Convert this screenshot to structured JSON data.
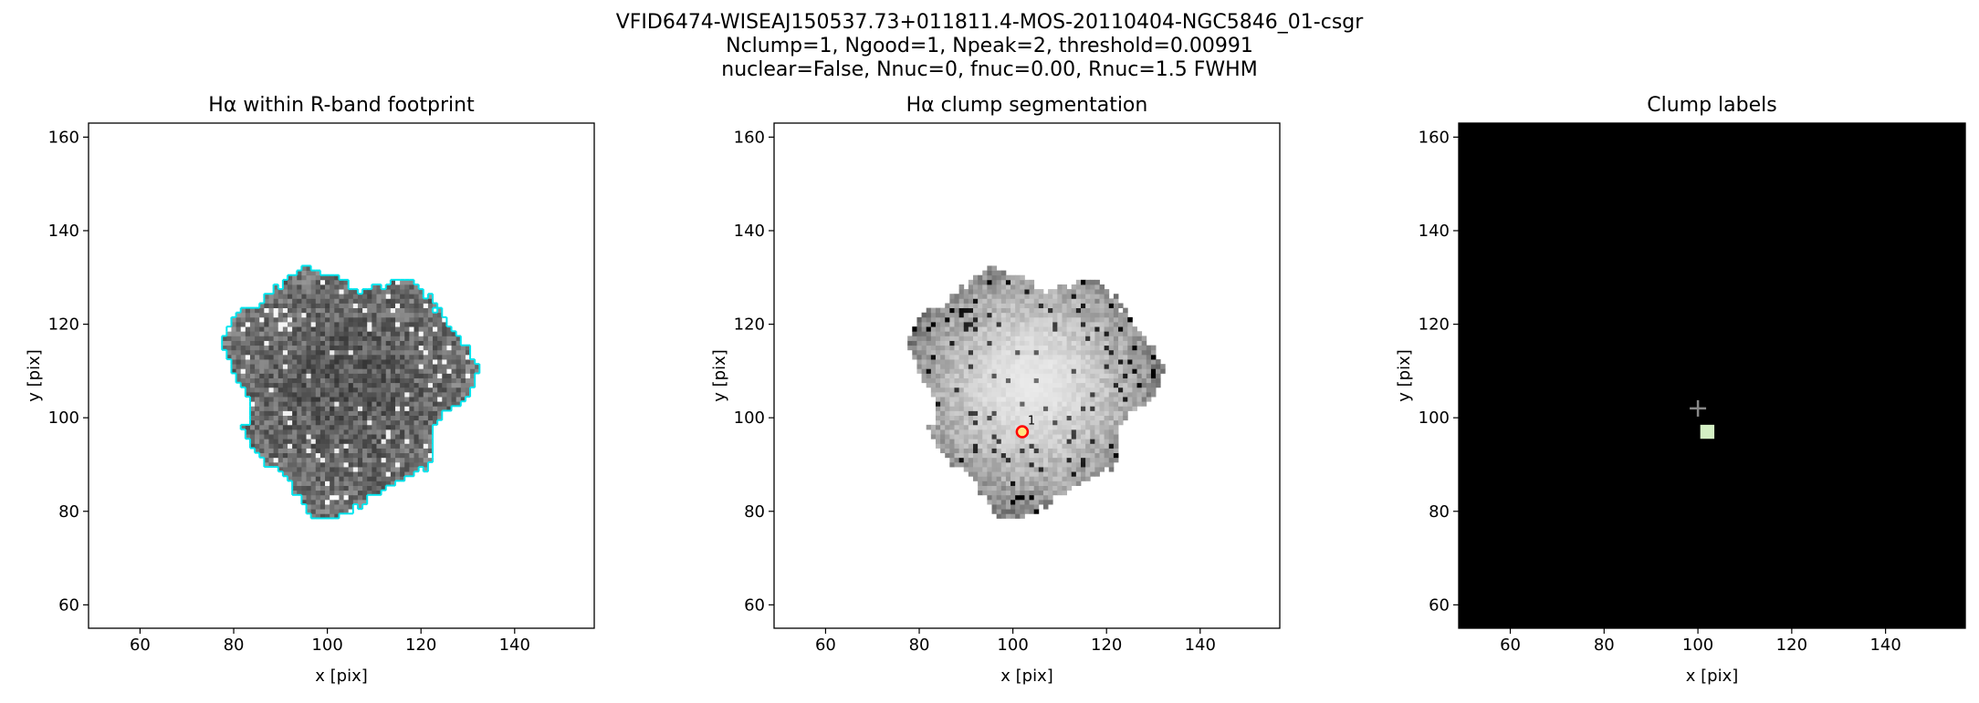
{
  "figure": {
    "title_lines": [
      "VFID6474-WISEAJ150537.73+011811.4-MOS-20110404-NGC5846_01-csgr",
      "Nclump=1, Ngood=1, Npeak=2, threshold=0.00991",
      "nuclear=False, Nnuc=0, fnuc=0.00, Rnuc=1.5 FWHM"
    ]
  },
  "chart_data": [
    {
      "type": "image",
      "title": "Hα within R-band footprint",
      "xlabel": "x [pix]",
      "ylabel": "y [pix]",
      "xlim": [
        49,
        157
      ],
      "ylim": [
        55,
        163
      ],
      "xticks": [
        60,
        80,
        100,
        120,
        140
      ],
      "yticks": [
        60,
        80,
        100,
        120,
        140,
        160
      ],
      "colormap": "dark-gray",
      "outline_color": "#00e5ee",
      "background": "#ffffff"
    },
    {
      "type": "image",
      "title": "Hα clump segmentation",
      "xlabel": "x [pix]",
      "ylabel": "y [pix]",
      "xlim": [
        49,
        157
      ],
      "ylim": [
        55,
        163
      ],
      "xticks": [
        60,
        80,
        100,
        120,
        140
      ],
      "yticks": [
        60,
        80,
        100,
        120,
        140,
        160
      ],
      "colormap": "light-gray",
      "background": "#ffffff",
      "markers": [
        {
          "x": 102,
          "y": 97,
          "label": "1",
          "color": "#ff0000"
        }
      ]
    },
    {
      "type": "labels",
      "title": "Clump labels",
      "xlabel": "x [pix]",
      "ylabel": "y [pix]",
      "xlim": [
        49,
        157
      ],
      "ylim": [
        55,
        163
      ],
      "xticks": [
        60,
        80,
        100,
        120,
        140
      ],
      "yticks": [
        60,
        80,
        100,
        120,
        140,
        160
      ],
      "background": "#000000",
      "centers": [
        {
          "x": 100,
          "y": 102,
          "color": "#888888"
        }
      ],
      "clumps": [
        {
          "x": 102,
          "y": 97,
          "color": "#d4f0c4"
        }
      ]
    }
  ]
}
